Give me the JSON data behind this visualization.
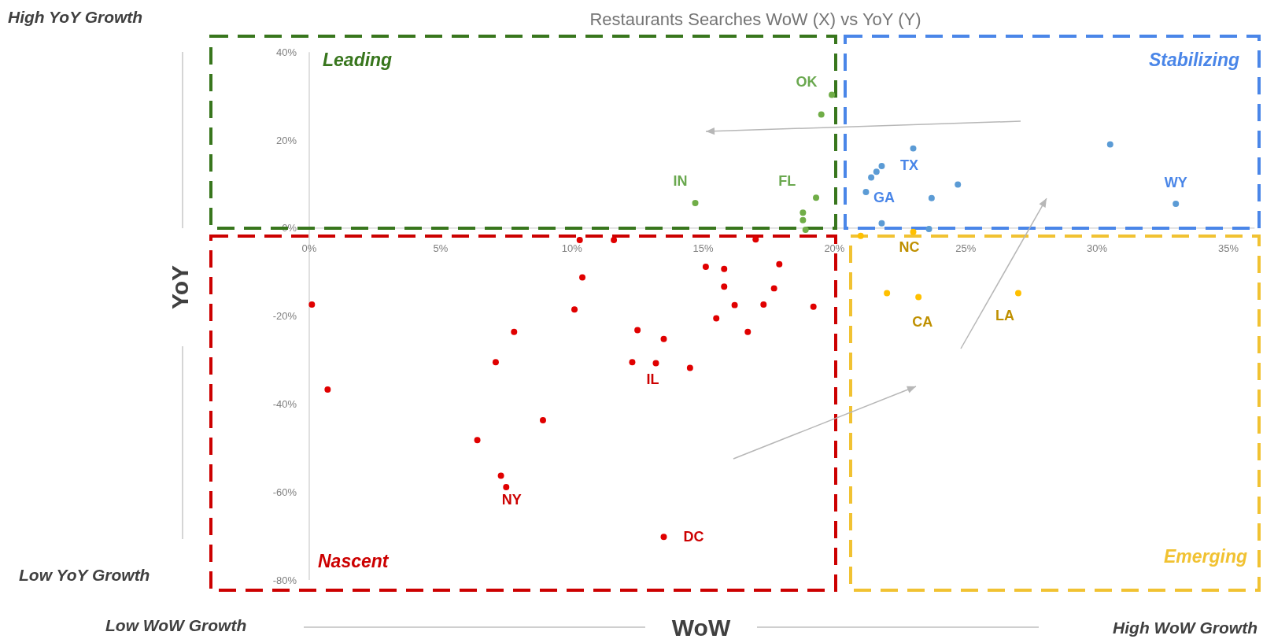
{
  "chart_data": {
    "type": "scatter",
    "title": "Restaurants Searches WoW (X) vs YoY (Y)",
    "xlabel": "WoW",
    "ylabel": "YoY",
    "xlim": [
      0,
      36
    ],
    "ylim": [
      -80,
      40
    ],
    "xticks": [
      {
        "value": 0,
        "label": "0%"
      },
      {
        "value": 5,
        "label": "5%"
      },
      {
        "value": 10,
        "label": "10%"
      },
      {
        "value": 15,
        "label": "15%"
      },
      {
        "value": 20,
        "label": "20%"
      },
      {
        "value": 25,
        "label": "25%"
      },
      {
        "value": 30,
        "label": "30%"
      },
      {
        "value": 35,
        "label": "35%"
      }
    ],
    "yticks": [
      {
        "value": 40,
        "label": "40%"
      },
      {
        "value": 20,
        "label": "20%"
      },
      {
        "value": 0,
        "label": "0%"
      },
      {
        "value": -20,
        "label": "-20%"
      },
      {
        "value": -40,
        "label": "-40%"
      },
      {
        "value": -60,
        "label": "-60%"
      },
      {
        "value": -80,
        "label": "-80%"
      }
    ],
    "grid": false,
    "marker": "circle",
    "series": [
      {
        "color": "#e00000",
        "x": [
          0.1,
          0.7,
          6.4,
          7.1,
          7.8,
          7.3,
          7.5,
          8.9,
          10.3,
          10.4,
          10.1,
          11.6,
          12.3,
          12.5,
          13.2,
          13.5,
          13.5,
          14.5,
          15.1,
          15.5,
          15.8,
          15.8,
          16.2,
          16.7,
          17.0,
          17.3,
          17.7,
          17.9,
          19.2
        ],
        "values": [
          -17.4,
          -36.7,
          -48.2,
          -30.5,
          -23.6,
          -56.3,
          -58.9,
          -43.7,
          -2.7,
          -11.2,
          -18.5,
          -2.7,
          -30.5,
          -23.2,
          -30.7,
          -25.2,
          -70.2,
          -31.8,
          -8.8,
          -20.5,
          -9.3,
          -13.3,
          -17.5,
          -23.6,
          -2.6,
          -17.4,
          -13.7,
          -8.2,
          -17.9
        ]
      },
      {
        "color": "#70ad47",
        "x": [
          19.9,
          19.5,
          14.7,
          19.3,
          18.8,
          18.8,
          18.9
        ],
        "values": [
          30.3,
          25.8,
          5.7,
          6.9,
          3.5,
          1.8,
          -0.4
        ]
      },
      {
        "color": "#5b9bd5",
        "x": [
          23.0,
          21.8,
          21.6,
          21.4,
          21.2,
          23.7,
          24.7,
          21.8,
          23.6,
          30.5,
          33.0
        ],
        "values": [
          18.1,
          14.1,
          12.8,
          11.5,
          8.2,
          6.8,
          9.9,
          1.1,
          -0.2,
          19.0,
          5.5
        ]
      },
      {
        "color": "#ffc000",
        "x": [
          21.0,
          23.0,
          22.0,
          23.2,
          27.0
        ],
        "values": [
          -1.8,
          -0.9,
          -14.8,
          -15.7,
          -14.8
        ]
      }
    ],
    "annotations": [
      "Leading",
      "Stabilizing",
      "Nascent",
      "Emerging",
      "High YoY Growth",
      "Low YoY Growth",
      "Low WoW Growth",
      "High WoW Growth",
      {
        "text": "OK",
        "x": 19.9,
        "y": 30.3
      },
      {
        "text": "IN",
        "x": 14.7,
        "y": 5.7
      },
      {
        "text": "FL",
        "x": 18.8,
        "y": 3.5
      },
      {
        "text": "TX",
        "x": 23.0,
        "y": 18.1
      },
      {
        "text": "GA",
        "x": 21.2,
        "y": 8.2
      },
      {
        "text": "WY",
        "x": 33.0,
        "y": 5.5
      },
      {
        "text": "NC",
        "x": 23.0,
        "y": -0.9
      },
      {
        "text": "CA",
        "x": 23.2,
        "y": -15.7
      },
      {
        "text": "LA",
        "x": 27.0,
        "y": -14.8
      },
      {
        "text": "IL",
        "x": 13.2,
        "y": -30.7
      },
      {
        "text": "NY",
        "x": 7.5,
        "y": -58.9
      },
      {
        "text": "DC",
        "x": 13.5,
        "y": -70.2
      }
    ]
  }
}
